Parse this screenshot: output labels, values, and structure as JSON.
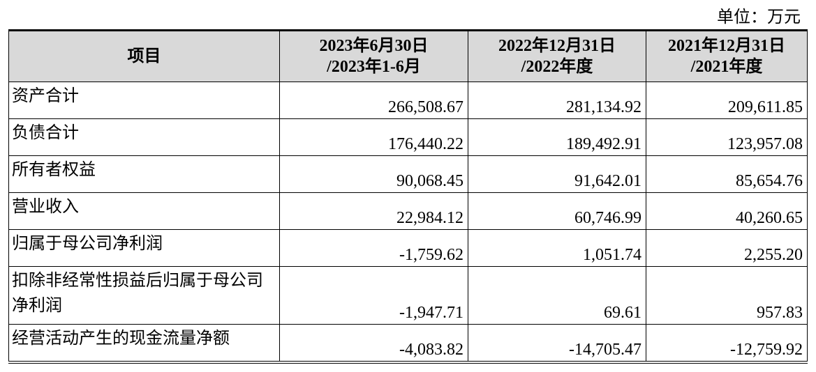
{
  "unit": "单位：万元",
  "table": {
    "header": [
      [
        "项目"
      ],
      [
        "2023年6月30日",
        "/2023年1-6月"
      ],
      [
        "2022年12月31日",
        "/2022年度"
      ],
      [
        "2021年12月31日",
        "/2021年度"
      ]
    ],
    "rows": [
      [
        "资产合计",
        "266,508.67",
        "281,134.92",
        "209,611.85"
      ],
      [
        "负债合计",
        "176,440.22",
        "189,492.91",
        "123,957.08"
      ],
      [
        "所有者权益",
        "90,068.45",
        "91,642.01",
        "85,654.76"
      ],
      [
        "营业收入",
        "22,984.12",
        "60,746.99",
        "40,260.65"
      ],
      [
        "归属于母公司净利润",
        "-1,759.62",
        "1,051.74",
        "2,255.20"
      ],
      [
        "扣除非经常性损益后归属于母公司净利润",
        "-1,947.71",
        "69.61",
        "957.83"
      ],
      [
        "经营活动产生的现金流量净额",
        "-4,083.82",
        "-14,705.47",
        "-12,759.92"
      ]
    ]
  }
}
